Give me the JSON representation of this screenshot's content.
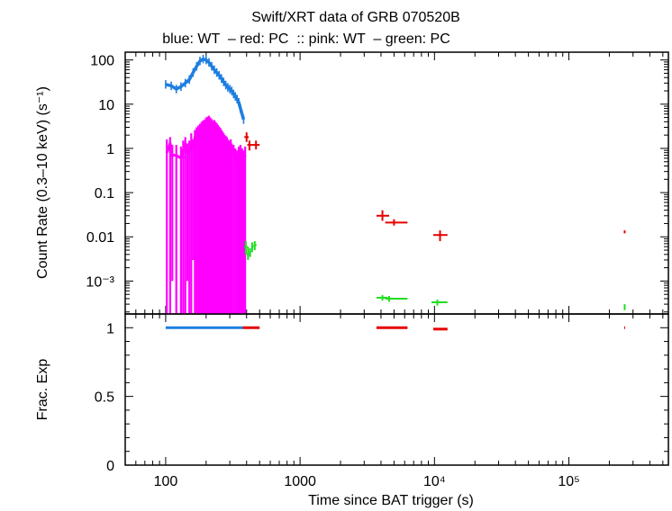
{
  "title": "Swift/XRT data of GRB 070520B",
  "subtitle": "blue: WT  – red: PC  :: pink: WT  – green: PC",
  "colors": {
    "blue": "#1e7ee0",
    "red": "#e60000",
    "pink": "#ff00ff",
    "green": "#22dd22"
  },
  "chart_data": [
    {
      "type": "scatter",
      "panel": "top",
      "ylabel": "Count Rate (0.3–10 keV) (s⁻¹)",
      "xscale": "log",
      "yscale": "log",
      "xlim": [
        50,
        550000
      ],
      "ylim": [
        0.00018,
        150
      ],
      "y_ticks": [
        {
          "v": 0.001,
          "label": "10⁻³"
        },
        {
          "v": 0.01,
          "label": "0.01"
        },
        {
          "v": 0.1,
          "label": "0.1"
        },
        {
          "v": 1,
          "label": "1"
        },
        {
          "v": 10,
          "label": "10"
        },
        {
          "v": 100,
          "label": "100"
        }
      ],
      "series": [
        {
          "name": "blue: WT",
          "color": "#1e7ee0",
          "style": "dense",
          "x": [
            100,
            110,
            120,
            130,
            140,
            150,
            160,
            170,
            180,
            190,
            200,
            210,
            220,
            230,
            240,
            250,
            260,
            270,
            280,
            290,
            300,
            310,
            320,
            330,
            340,
            350,
            360,
            370,
            380
          ],
          "y": [
            28,
            26,
            22,
            25,
            30,
            36,
            52,
            72,
            95,
            105,
            100,
            88,
            72,
            60,
            52,
            45,
            38,
            32,
            27,
            24,
            22,
            20,
            17,
            15,
            13,
            11,
            8,
            6,
            4.5
          ]
        },
        {
          "name": "pink: WT",
          "color": "#ff00ff",
          "style": "dense",
          "x": [
            102,
            108,
            112,
            120,
            130,
            135,
            140,
            145,
            150,
            155,
            160,
            165,
            170,
            175,
            180,
            185,
            190,
            195,
            200,
            205,
            210,
            215,
            220,
            225,
            230,
            235,
            240,
            245,
            250,
            255,
            260,
            265,
            270,
            275,
            280,
            285,
            290,
            295,
            300,
            305,
            310,
            320,
            330,
            340,
            350,
            355,
            360,
            370,
            380,
            390
          ],
          "y": [
            0.8,
            1.3,
            0.7,
            0.7,
            0.6,
            0.9,
            1.2,
            0.8,
            0.9,
            1.4,
            1.0,
            1.8,
            2.0,
            2.2,
            2.5,
            2.8,
            3.0,
            3.2,
            3.5,
            4.0,
            4.2,
            3.8,
            3.5,
            3.0,
            3.2,
            2.8,
            2.6,
            2.4,
            2.2,
            2.0,
            1.8,
            1.6,
            1.5,
            1.4,
            1.3,
            1.2,
            1.1,
            1.0,
            0.9,
            1.1,
            0.9,
            0.8,
            0.6,
            0.5,
            0.7,
            0.45,
            0.8,
            0.6,
            0.5,
            0.7
          ],
          "lo": [
            0.00018,
            0.00018,
            0.001,
            0.00018,
            0.00018,
            0.00018,
            0.00018,
            0.001,
            0.00018,
            0.00018,
            0.003,
            0.00018,
            0.00018,
            0.00018,
            0.00018,
            0.00018,
            0.00018,
            0.00018,
            0.00018,
            0.00018,
            0.00018,
            0.00018,
            0.00018,
            0.00018,
            0.00018,
            0.00018,
            0.00018,
            0.00018,
            0.00018,
            0.00018,
            0.00018,
            0.00018,
            0.00018,
            0.00018,
            0.00018,
            0.00018,
            0.00018,
            0.00018,
            0.00018,
            0.00018,
            0.00018,
            0.00018,
            0.00018,
            0.00018,
            0.00018,
            0.00018,
            0.00018,
            0.00018,
            0.00018,
            0.00018
          ],
          "hi": [
            1.6,
            1.8,
            1.2,
            1.2,
            1.1,
            1.5,
            1.8,
            1.3,
            1.5,
            2.2,
            1.6,
            2.6,
            3.0,
            3.3,
            3.6,
            4.0,
            4.3,
            4.5,
            5.0,
            5.2,
            5.5,
            5.0,
            4.6,
            4.2,
            4.4,
            4.0,
            3.7,
            3.4,
            3.1,
            2.9,
            2.6,
            2.4,
            2.2,
            2.0,
            1.9,
            1.8,
            1.6,
            1.5,
            1.4,
            1.6,
            1.3,
            1.2,
            1.0,
            0.9,
            1.1,
            0.8,
            1.2,
            1.0,
            0.9,
            1.1
          ]
        },
        {
          "name": "red: PC",
          "color": "#e60000",
          "style": "points",
          "x": [
            400,
            420,
            470,
            4100,
            5000,
            11000,
            260000
          ],
          "y": [
            1.8,
            1.2,
            1.2,
            0.03,
            0.021,
            0.011,
            0.013
          ],
          "xerr": [
            [
              385,
              415
            ],
            [
              405,
              440
            ],
            [
              440,
              500
            ],
            [
              3700,
              4600
            ],
            [
              4300,
              6300
            ],
            [
              9800,
              12500
            ],
            [
              258000,
              262000
            ]
          ],
          "yerr": [
            [
              1.4,
              2.3
            ],
            [
              0.9,
              1.5
            ],
            [
              0.95,
              1.5
            ],
            [
              0.023,
              0.04
            ],
            [
              0.018,
              0.025
            ],
            [
              0.008,
              0.014
            ],
            [
              0.012,
              0.014
            ]
          ]
        },
        {
          "name": "green: PC",
          "color": "#22dd22",
          "style": "points",
          "x": [
            395,
            410,
            425,
            440,
            460,
            4100,
            4600,
            10500,
            260000
          ],
          "y": [
            0.006,
            0.004,
            0.0045,
            0.006,
            0.0065,
            0.00042,
            0.0004,
            0.00033,
            0.00026
          ],
          "xerr": [
            [
              385,
              405
            ],
            [
              402,
              418
            ],
            [
              418,
              432
            ],
            [
              432,
              450
            ],
            [
              450,
              475
            ],
            [
              3700,
              4500
            ],
            [
              4300,
              6300
            ],
            [
              9500,
              12500
            ],
            [
              259000,
              261000
            ]
          ],
          "yerr": [
            [
              0.004,
              0.008
            ],
            [
              0.003,
              0.006
            ],
            [
              0.0035,
              0.0055
            ],
            [
              0.0045,
              0.0075
            ],
            [
              0.005,
              0.008
            ],
            [
              0.00036,
              0.00048
            ],
            [
              0.00034,
              0.00046
            ],
            [
              0.00028,
              0.00038
            ],
            [
              0.00022,
              0.0003
            ]
          ]
        }
      ]
    },
    {
      "type": "scatter",
      "panel": "bottom",
      "ylabel": "Frac. Exp",
      "xlabel": "Time since BAT trigger (s)",
      "xscale": "log",
      "xlim": [
        50,
        550000
      ],
      "ylim": [
        0,
        1.1
      ],
      "y_ticks": [
        {
          "v": 0,
          "label": "0"
        },
        {
          "v": 0.5,
          "label": "0.5"
        },
        {
          "v": 1,
          "label": "1"
        }
      ],
      "x_ticks": [
        {
          "v": 100,
          "label": "100"
        },
        {
          "v": 1000,
          "label": "1000"
        },
        {
          "v": 10000,
          "label": "10⁴"
        },
        {
          "v": 100000,
          "label": "10⁵"
        }
      ],
      "series": [
        {
          "name": "blue: WT",
          "color": "#1e7ee0",
          "segments": [
            [
              100,
              375,
              1.0
            ]
          ]
        },
        {
          "name": "red: PC",
          "color": "#e60000",
          "segments": [
            [
              375,
              500,
              1.0
            ],
            [
              3700,
              6300,
              1.0
            ],
            [
              9800,
              12500,
              0.99
            ],
            [
              258000,
              262000,
              1.0
            ]
          ]
        }
      ]
    }
  ]
}
